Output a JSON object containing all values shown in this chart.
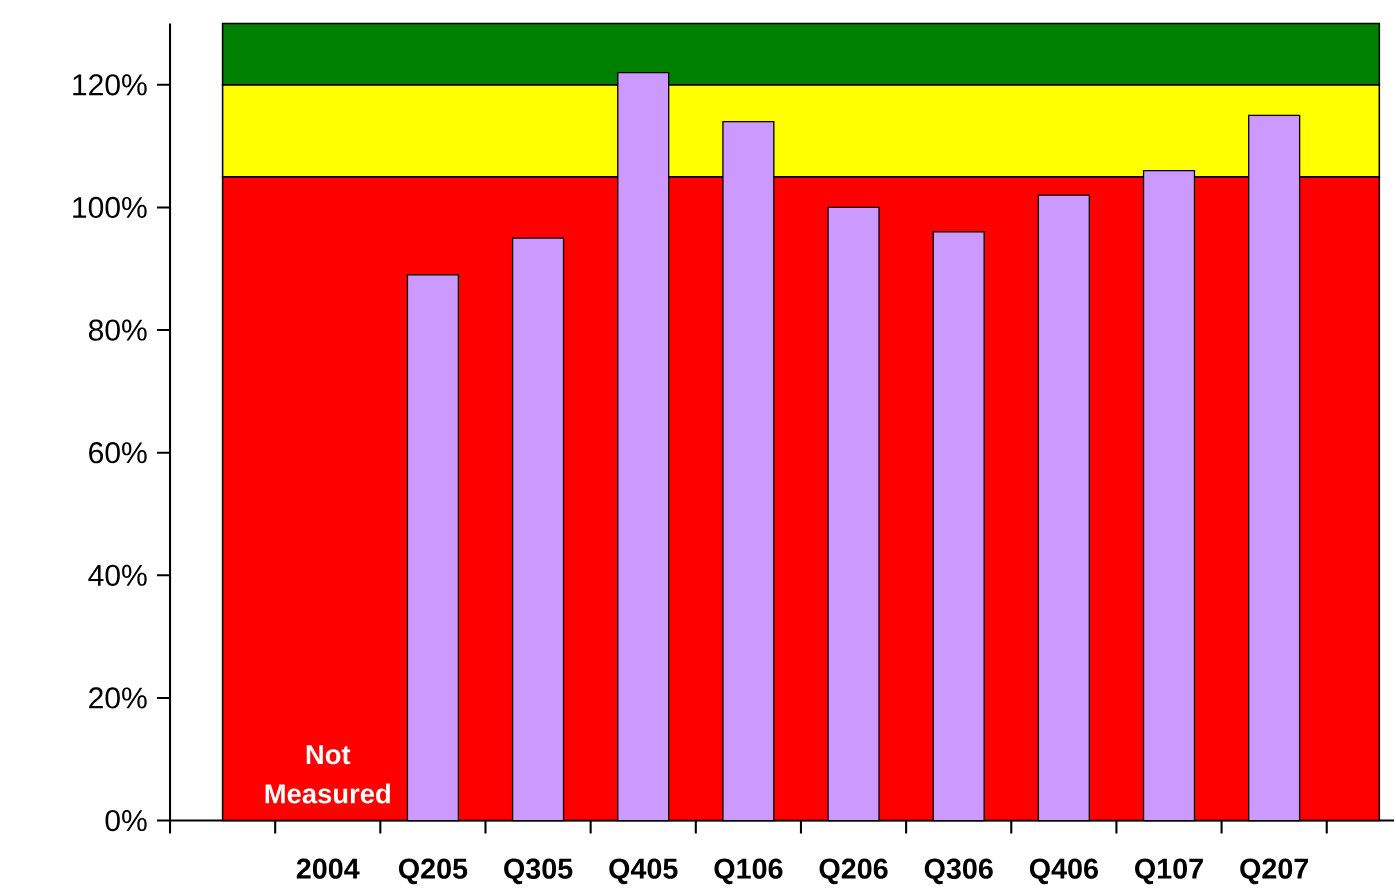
{
  "chart_data": {
    "type": "bar",
    "categories": [
      null,
      "2004",
      "Q205",
      "Q305",
      "Q405",
      "Q106",
      "Q206",
      "Q306",
      "Q406",
      "Q107",
      "Q207"
    ],
    "values": [
      null,
      null,
      89,
      95,
      122,
      114,
      100,
      96,
      102,
      106,
      115
    ],
    "color": "#cc99ff",
    "ylim": [
      0,
      130
    ],
    "yticks": [
      {
        "value": 0,
        "label": "0%"
      },
      {
        "value": 20,
        "label": "20%"
      },
      {
        "value": 40,
        "label": "40%"
      },
      {
        "value": 60,
        "label": "60%"
      },
      {
        "value": 80,
        "label": "80%"
      },
      {
        "value": 100,
        "label": "100%"
      },
      {
        "value": 120,
        "label": "120%"
      }
    ],
    "bands": [
      {
        "axis": "y",
        "from": 0,
        "to": 105,
        "color": "#ff0000"
      },
      {
        "axis": "y",
        "from": 105,
        "to": 120,
        "color": "#ffff00"
      },
      {
        "axis": "y",
        "from": 120,
        "to": 130,
        "color": "#008000"
      }
    ],
    "annotations": [
      "Not Measured"
    ]
  }
}
